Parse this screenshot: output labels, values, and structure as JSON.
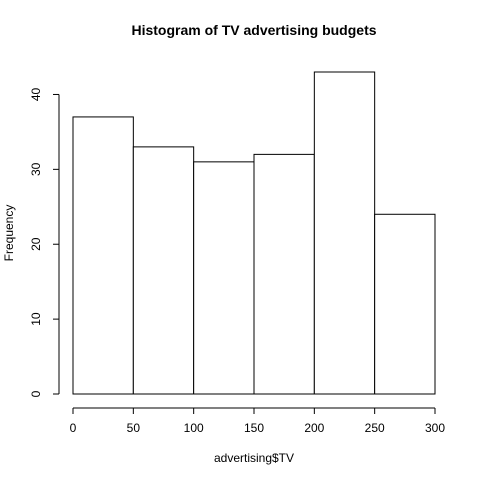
{
  "chart_data": {
    "type": "bar",
    "title": "Histogram of TV advertising budgets",
    "xlabel": "advertising$TV",
    "ylabel": "Frequency",
    "bins": [
      {
        "from": 0,
        "to": 50,
        "value": 37
      },
      {
        "from": 50,
        "to": 100,
        "value": 33
      },
      {
        "from": 100,
        "to": 150,
        "value": 31
      },
      {
        "from": 150,
        "to": 200,
        "value": 32
      },
      {
        "from": 200,
        "to": 250,
        "value": 43
      },
      {
        "from": 250,
        "to": 300,
        "value": 24
      }
    ],
    "x_ticks": [
      "0",
      "50",
      "100",
      "150",
      "200",
      "250",
      "300"
    ],
    "y_ticks": [
      "0",
      "10",
      "20",
      "30",
      "40"
    ],
    "xlim": [
      0,
      300
    ],
    "ylim": [
      0,
      43
    ],
    "grid": false,
    "colors": {
      "bar_fill": "#ffffff",
      "bar_stroke": "#000000"
    }
  }
}
